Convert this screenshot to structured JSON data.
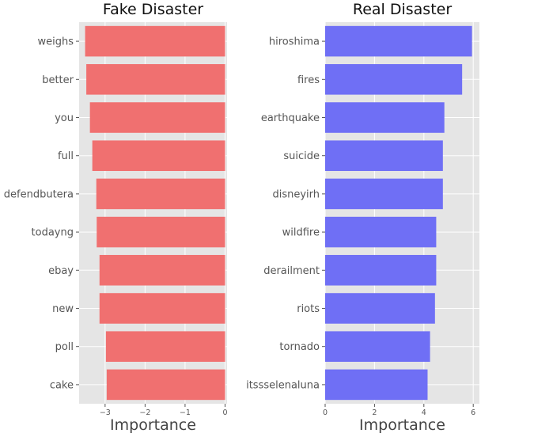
{
  "chart_data": [
    {
      "type": "bar",
      "orientation": "horizontal",
      "title": "Fake Disaster",
      "xlabel": "Importance",
      "ylabel": "",
      "categories": [
        "weighs",
        "better",
        "you",
        "full",
        "defendbutera",
        "todayng",
        "ebay",
        "new",
        "poll",
        "cake"
      ],
      "values": [
        -3.5,
        -3.47,
        -3.38,
        -3.32,
        -3.22,
        -3.21,
        -3.14,
        -3.14,
        -2.98,
        -2.96
      ],
      "xlim": [
        -3.65,
        0.05
      ],
      "xticks": [
        -3,
        -2,
        -1,
        0
      ],
      "xtick_labels": [
        "−3",
        "−2",
        "−1",
        "0"
      ],
      "bar_color": "#f07070",
      "background": "#e5e5e5",
      "grid": true
    },
    {
      "type": "bar",
      "orientation": "horizontal",
      "title": "Real Disaster",
      "xlabel": "Importance",
      "ylabel": "",
      "categories": [
        "hiroshima",
        "fires",
        "earthquake",
        "suicide",
        "disneyirh",
        "wildfire",
        "derailment",
        "riots",
        "tornado",
        "itssselenaluna"
      ],
      "values": [
        5.95,
        5.55,
        4.83,
        4.77,
        4.77,
        4.5,
        4.5,
        4.45,
        4.25,
        4.15
      ],
      "xlim": [
        0,
        6.25
      ],
      "xticks": [
        0,
        2,
        4,
        6
      ],
      "xtick_labels": [
        "0",
        "2",
        "4",
        "6"
      ],
      "bar_color": "#6f6ff5",
      "background": "#e5e5e5",
      "grid": true
    }
  ]
}
